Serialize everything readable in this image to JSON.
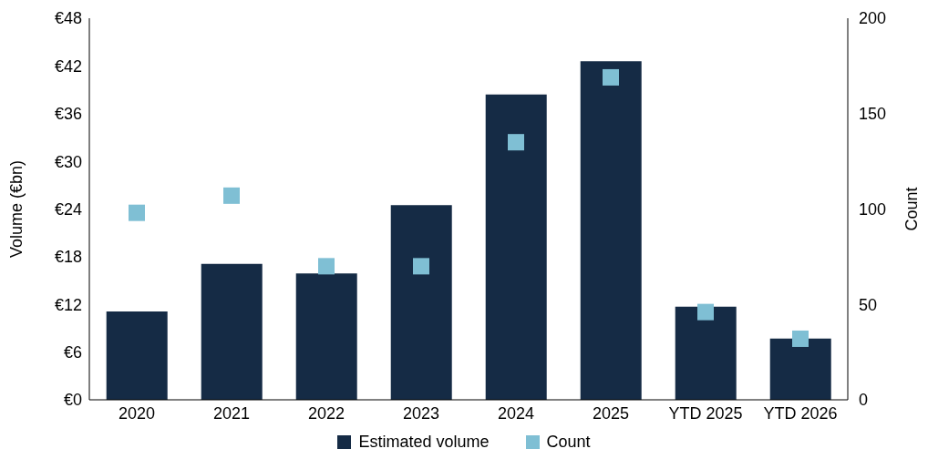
{
  "chart_data": {
    "type": "bar",
    "categories": [
      "2020",
      "2021",
      "2022",
      "2023",
      "2024",
      "2025",
      "YTD 2025",
      "YTD 2026"
    ],
    "ylabel": "Volume (€bn)",
    "y2label": "Count",
    "ylim": [
      0,
      48
    ],
    "yticks": [
      {
        "value": 0,
        "label": "€0"
      },
      {
        "value": 6,
        "label": "€6"
      },
      {
        "value": 12,
        "label": "€12"
      },
      {
        "value": 18,
        "label": "€18"
      },
      {
        "value": 24,
        "label": "€24"
      },
      {
        "value": 30,
        "label": "€30"
      },
      {
        "value": 36,
        "label": "€36"
      },
      {
        "value": 42,
        "label": "€42"
      },
      {
        "value": 48,
        "label": "€48"
      }
    ],
    "y2lim": [
      0,
      200
    ],
    "y2ticks": [
      0,
      50,
      100,
      150,
      200
    ],
    "series": [
      {
        "name": "Estimated volume",
        "type": "bar",
        "color": "#152b45",
        "values": [
          11.1,
          17.1,
          15.9,
          24.5,
          38.4,
          42.6,
          11.7,
          7.7
        ]
      },
      {
        "name": "Count",
        "type": "scatter",
        "axis": "y2",
        "marker": "square",
        "color": "#7fbfd4",
        "values": [
          98,
          107,
          70,
          70,
          135,
          169,
          46,
          32
        ]
      }
    ],
    "legend": "bottom",
    "grid": false
  }
}
